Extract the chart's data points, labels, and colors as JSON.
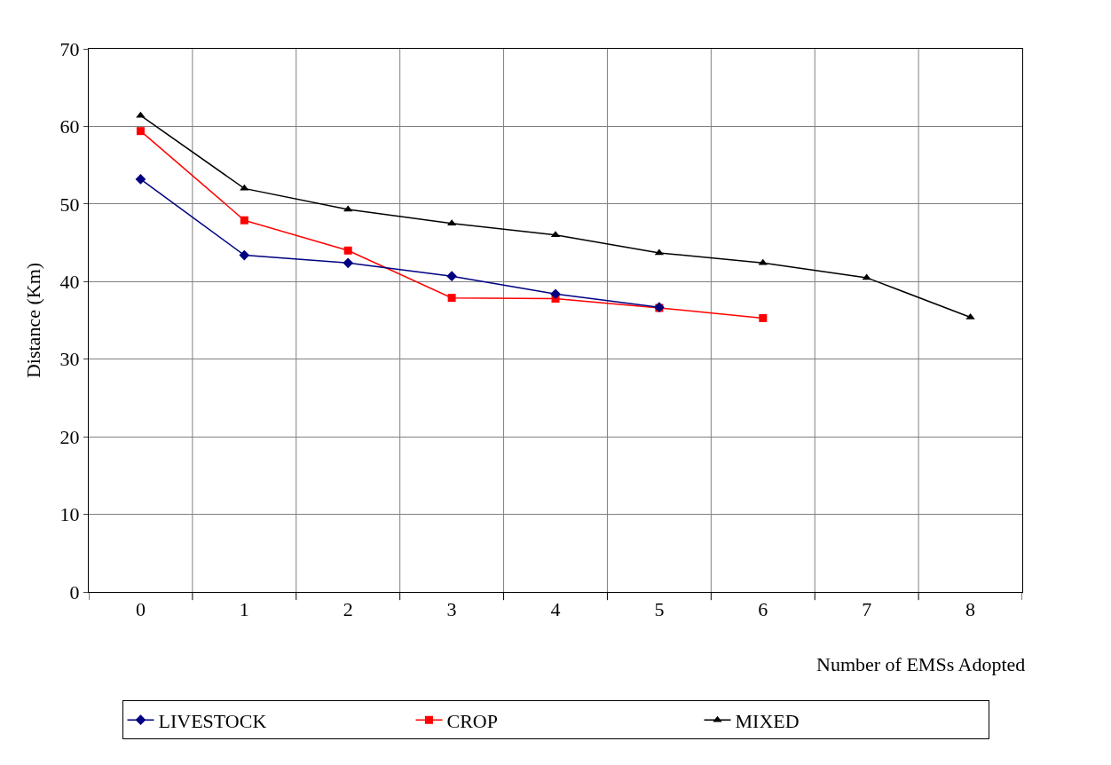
{
  "chart_data": {
    "type": "line",
    "xlabel": "Number of EMSs Adopted",
    "ylabel": "Distance (Km)",
    "categories": [
      "0",
      "1",
      "2",
      "3",
      "4",
      "5",
      "6",
      "7",
      "8"
    ],
    "ylim": [
      0,
      70
    ],
    "yticks": [
      0,
      10,
      20,
      30,
      40,
      50,
      60,
      70
    ],
    "grid": true,
    "legend": "bottom",
    "series": [
      {
        "name": "LIVESTOCK",
        "color": "#000080",
        "marker": "diamond",
        "values": [
          53.2,
          43.4,
          42.4,
          40.7,
          38.4,
          36.7,
          null,
          null,
          null
        ]
      },
      {
        "name": "CROP",
        "color": "#ff0000",
        "marker": "square",
        "values": [
          59.4,
          47.9,
          44.0,
          37.9,
          37.8,
          36.6,
          35.3,
          null,
          null
        ]
      },
      {
        "name": "MIXED",
        "color": "#000000",
        "marker": "triangle",
        "values": [
          61.4,
          52.0,
          49.3,
          47.5,
          46.0,
          43.7,
          42.4,
          40.5,
          35.4
        ]
      }
    ]
  }
}
